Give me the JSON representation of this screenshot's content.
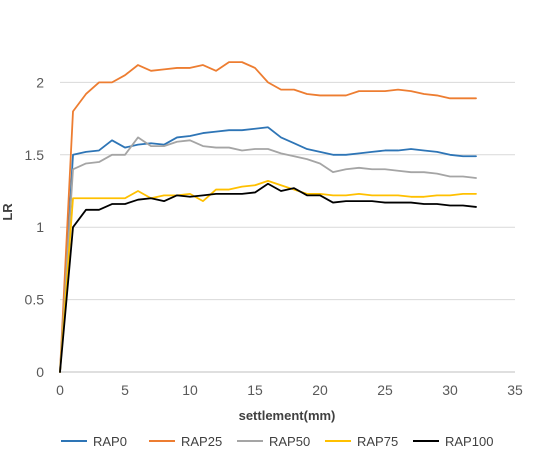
{
  "chart_data": {
    "type": "line",
    "title": "",
    "xlabel": "settlement(mm)",
    "ylabel": "LR",
    "xlim": [
      0,
      35
    ],
    "ylim": [
      0,
      2.5
    ],
    "xticks": [
      0,
      5,
      10,
      15,
      20,
      25,
      30,
      35
    ],
    "yticks": [
      0,
      0.5,
      1,
      1.5,
      2
    ],
    "xtick_labels": [
      "0",
      "5",
      "10",
      "15",
      "20",
      "25",
      "30",
      "35"
    ],
    "ytick_labels": [
      "0",
      "0.5",
      "1",
      "1.5",
      "2"
    ],
    "grid": "horizontal",
    "legend_position": "bottom",
    "x": [
      0,
      1,
      2,
      3,
      4,
      5,
      6,
      7,
      8,
      9,
      10,
      11,
      12,
      13,
      14,
      15,
      16,
      17,
      18,
      19,
      20,
      21,
      22,
      23,
      24,
      25,
      26,
      27,
      28,
      29,
      30,
      31,
      32
    ],
    "series": [
      {
        "name": "RAP0",
        "color": "#2e75b6",
        "values": [
          0,
          1.5,
          1.52,
          1.53,
          1.6,
          1.55,
          1.57,
          1.58,
          1.57,
          1.62,
          1.63,
          1.65,
          1.66,
          1.67,
          1.67,
          1.68,
          1.69,
          1.62,
          1.58,
          1.54,
          1.52,
          1.5,
          1.5,
          1.51,
          1.52,
          1.53,
          1.53,
          1.54,
          1.53,
          1.52,
          1.5,
          1.49,
          1.49
        ]
      },
      {
        "name": "RAP25",
        "color": "#ed7d31",
        "values": [
          0,
          1.8,
          1.92,
          2.0,
          2.0,
          2.05,
          2.12,
          2.08,
          2.09,
          2.1,
          2.1,
          2.12,
          2.08,
          2.14,
          2.14,
          2.1,
          2.0,
          1.95,
          1.95,
          1.92,
          1.91,
          1.91,
          1.91,
          1.94,
          1.94,
          1.94,
          1.95,
          1.94,
          1.92,
          1.91,
          1.89,
          1.89,
          1.89
        ]
      },
      {
        "name": "RAP50",
        "color": "#a5a5a5",
        "values": [
          0,
          1.4,
          1.44,
          1.45,
          1.5,
          1.5,
          1.62,
          1.56,
          1.56,
          1.59,
          1.6,
          1.56,
          1.55,
          1.55,
          1.53,
          1.54,
          1.54,
          1.51,
          1.49,
          1.47,
          1.44,
          1.38,
          1.4,
          1.41,
          1.4,
          1.4,
          1.39,
          1.38,
          1.38,
          1.37,
          1.35,
          1.35,
          1.34
        ]
      },
      {
        "name": "RAP75",
        "color": "#ffc000",
        "values": [
          0,
          1.2,
          1.2,
          1.2,
          1.2,
          1.2,
          1.25,
          1.2,
          1.22,
          1.22,
          1.23,
          1.18,
          1.26,
          1.26,
          1.28,
          1.29,
          1.32,
          1.29,
          1.26,
          1.23,
          1.23,
          1.22,
          1.22,
          1.23,
          1.22,
          1.22,
          1.22,
          1.21,
          1.21,
          1.22,
          1.22,
          1.23,
          1.23
        ]
      },
      {
        "name": "RAP100",
        "color": "#000000",
        "values": [
          0,
          1.0,
          1.12,
          1.12,
          1.16,
          1.16,
          1.19,
          1.2,
          1.18,
          1.22,
          1.21,
          1.22,
          1.23,
          1.23,
          1.23,
          1.24,
          1.3,
          1.25,
          1.27,
          1.22,
          1.22,
          1.17,
          1.18,
          1.18,
          1.18,
          1.17,
          1.17,
          1.17,
          1.16,
          1.16,
          1.15,
          1.15,
          1.14
        ]
      }
    ]
  }
}
